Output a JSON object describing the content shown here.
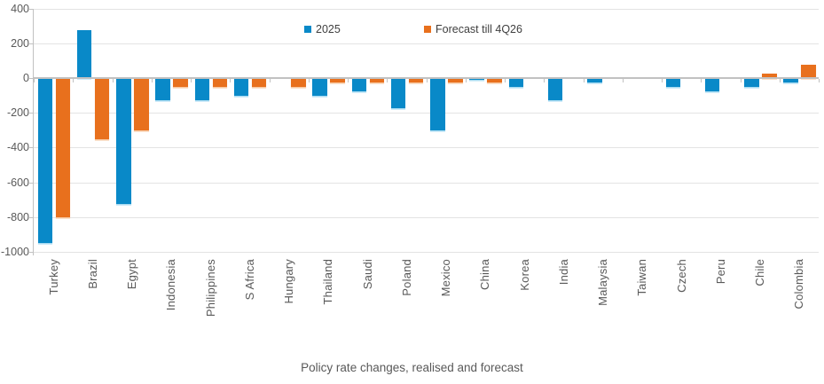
{
  "chart_data": {
    "type": "bar",
    "caption": "Policy rate changes, realised and forecast",
    "categories": [
      "Turkey",
      "Brazil",
      "Egypt",
      "Indonesia",
      "Philippines",
      "S Africa",
      "Hungary",
      "Thailand",
      "Saudi",
      "Poland",
      "Mexico",
      "China",
      "Korea",
      "India",
      "Malaysia",
      "Taiwan",
      "Czech",
      "Peru",
      "Chile",
      "Colombia"
    ],
    "series": [
      {
        "name": "2025",
        "color": "#0989c8",
        "edge_color": "#aadcf2",
        "values": [
          -950,
          275,
          -725,
          -125,
          -125,
          -100,
          0,
          -100,
          -75,
          -175,
          -300,
          -10,
          -50,
          -125,
          -25,
          0,
          -50,
          -75,
          -50,
          -25
        ]
      },
      {
        "name": "Forecast till 4Q26",
        "color": "#e8701d",
        "edge_color": "#f7c9a3",
        "values": [
          -800,
          -350,
          -300,
          -50,
          -50,
          -50,
          -50,
          -25,
          -25,
          -25,
          -25,
          -25,
          0,
          0,
          0,
          0,
          0,
          0,
          25,
          75
        ]
      }
    ],
    "ylim": [
      -1000,
      400
    ],
    "ytick_step": 200,
    "ytick_labels": [
      "400",
      "200",
      "0",
      "-200",
      "-400",
      "-600",
      "-800",
      "-1000"
    ],
    "grid": "horizontal",
    "legend_position": "top-center",
    "xlabel": "",
    "ylabel": ""
  }
}
